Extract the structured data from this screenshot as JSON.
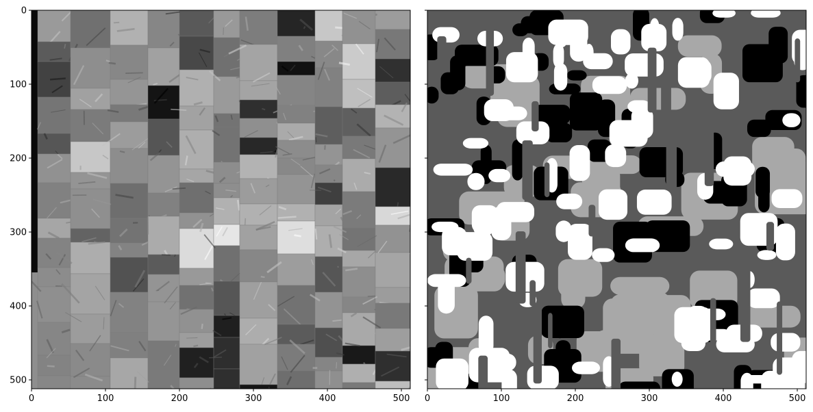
{
  "figure": {
    "type": "image-pair",
    "description_visible": "two image panels with pixel-coordinate axes",
    "panels": [
      {
        "id": "left",
        "content": "grayscale mosaic of texture patches",
        "xlim": [
          0,
          512
        ],
        "ylim": [
          512,
          0
        ],
        "x_ticks": [
          0,
          100,
          200,
          300,
          400,
          500
        ],
        "y_ticks": [
          0,
          100,
          200,
          300,
          400,
          500
        ],
        "x_tick_labels": [
          "0",
          "100",
          "200",
          "300",
          "400",
          "500"
        ],
        "y_tick_labels": [
          "0",
          "100",
          "200",
          "300",
          "400",
          "500"
        ],
        "y_tick_labels_visible": true
      },
      {
        "id": "right",
        "content": "segmentation map with 4 gray levels",
        "levels": [
          "#000000",
          "#5a5a5a",
          "#a8a8a8",
          "#ffffff"
        ],
        "xlim": [
          0,
          512
        ],
        "ylim": [
          512,
          0
        ],
        "x_ticks": [
          0,
          100,
          200,
          300,
          400,
          500
        ],
        "y_ticks": [
          0,
          100,
          200,
          300,
          400,
          500
        ],
        "x_tick_labels": [
          "0",
          "100",
          "200",
          "300",
          "400",
          "500"
        ],
        "y_tick_labels_visible": false
      }
    ]
  }
}
